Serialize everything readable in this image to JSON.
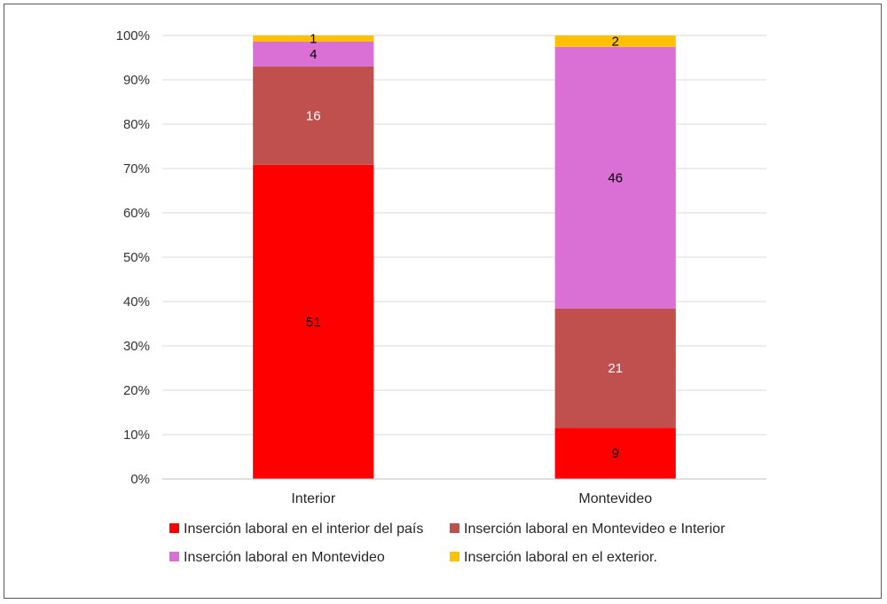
{
  "chart_data": {
    "type": "bar",
    "stacked": true,
    "percent_stacked": true,
    "categories": [
      "Interior",
      "Montevideo"
    ],
    "series": [
      {
        "name": "Inserción laboral en el interior del país",
        "values": [
          51,
          9
        ],
        "color": "#ff0000",
        "label_color": "#000000"
      },
      {
        "name": "Inserción laboral en Montevideo e Interior",
        "values": [
          16,
          21
        ],
        "color": "#c0504d",
        "label_color": "#ffffff"
      },
      {
        "name": "Inserción laboral en Montevideo",
        "values": [
          4,
          46
        ],
        "color": "#da70d6",
        "label_color": "#000000"
      },
      {
        "name": "Inserción laboral en el exterior.",
        "values": [
          1,
          2
        ],
        "color": "#ffc000",
        "label_color": "#000000"
      }
    ],
    "y_ticks": [
      "0%",
      "10%",
      "20%",
      "30%",
      "40%",
      "50%",
      "60%",
      "70%",
      "80%",
      "90%",
      "100%"
    ],
    "ylim": [
      0,
      100
    ],
    "grid": true,
    "legend": "bottom",
    "title": "",
    "xlabel": "",
    "ylabel": ""
  }
}
